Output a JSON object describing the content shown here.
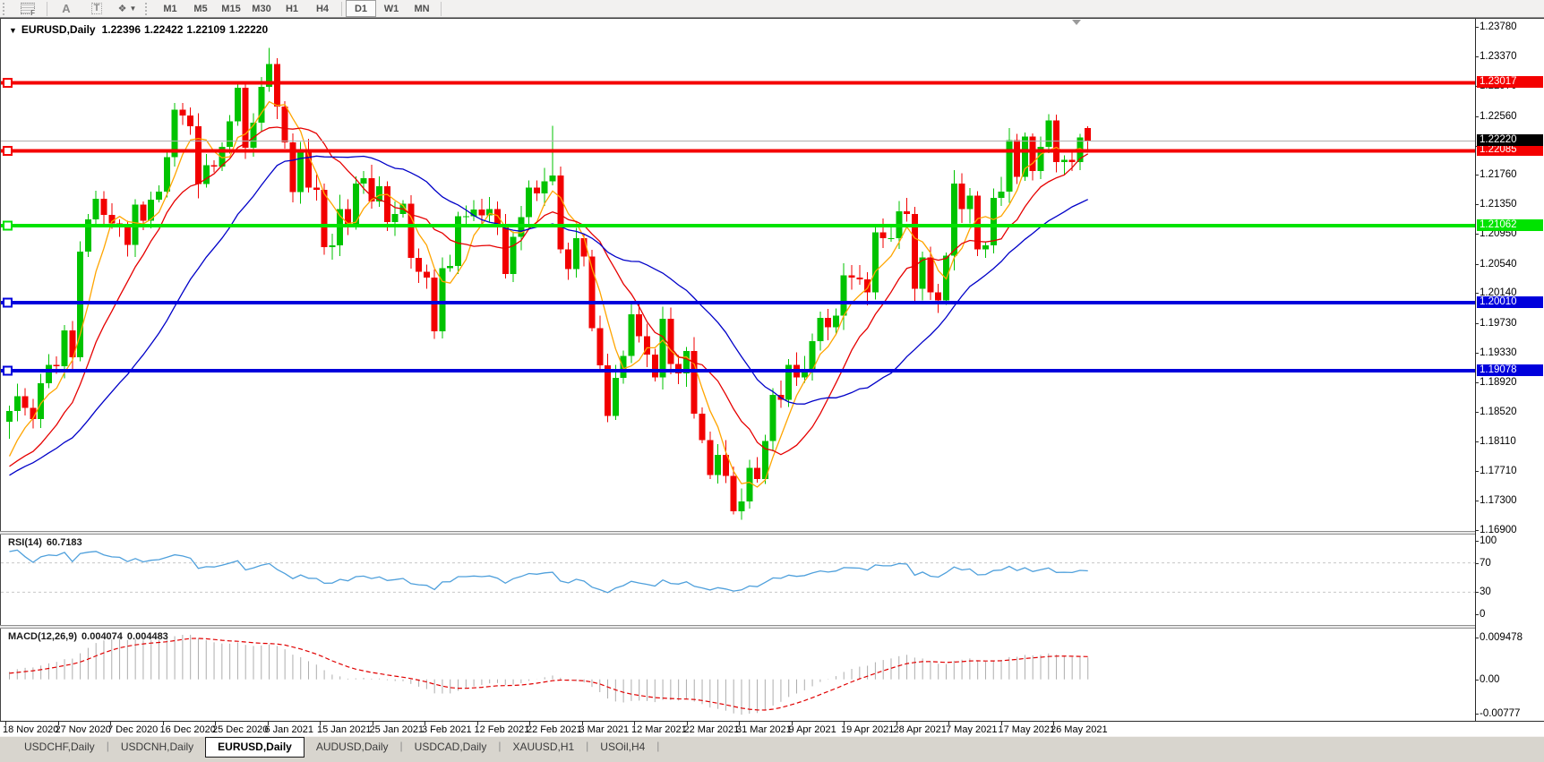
{
  "toolbar": {
    "tools": [
      {
        "name": "pattern-tool",
        "label": "F"
      },
      {
        "name": "text-label-tool",
        "label": "A"
      },
      {
        "name": "text-tool",
        "label": "T"
      },
      {
        "name": "shapes-tool",
        "label": "❖"
      }
    ],
    "timeframes": [
      "M1",
      "M5",
      "M15",
      "M30",
      "H1",
      "H4",
      "D1",
      "W1",
      "MN"
    ],
    "active_timeframe": "D1"
  },
  "chart_header": {
    "symbol_period": "EURUSD,Daily",
    "open": "1.22396",
    "high": "1.22422",
    "low": "1.22109",
    "close": "1.22220"
  },
  "price_axis": {
    "ticks": [
      "1.23780",
      "1.23370",
      "1.22970",
      "1.22560",
      "1.22150",
      "1.21760",
      "1.21350",
      "1.20950",
      "1.20540",
      "1.20140",
      "1.19730",
      "1.19330",
      "1.18920",
      "1.18520",
      "1.18110",
      "1.17710",
      "1.17300",
      "1.16900"
    ]
  },
  "hlines": [
    {
      "label": "1.23017",
      "value": 1.23017,
      "color": "#F40000"
    },
    {
      "label": "1.22085",
      "value": 1.22085,
      "color": "#F40000"
    },
    {
      "label": "1.21062",
      "value": 1.21062,
      "color": "#00E300"
    },
    {
      "label": "1.20010",
      "value": 1.2001,
      "color": "#0000DC"
    },
    {
      "label": "1.19078",
      "value": 1.19078,
      "color": "#0000DC"
    }
  ],
  "current_price": {
    "label": "1.22220",
    "value": 1.2222,
    "badge_bg": "#000000"
  },
  "rsi_panel": {
    "title": "RSI(14)",
    "value": "60.7183",
    "ticks": [
      "100",
      "70",
      "30",
      "0"
    ],
    "level_lines": [
      70,
      30
    ]
  },
  "macd_panel": {
    "title": "MACD(12,26,9)",
    "macd_value": "0.004074",
    "signal_value": "0.004483",
    "ticks": [
      {
        "label": "0.009478",
        "value": 0.009478
      },
      {
        "label": "0.00",
        "value": 0
      },
      {
        "label": "-0.00777",
        "value": -0.00777
      }
    ]
  },
  "time_axis": {
    "labels": [
      "18 Nov 2020",
      "27 Nov 2020",
      "7 Dec 2020",
      "16 Dec 2020",
      "25 Dec 2020",
      "6 Jan 2021",
      "15 Jan 2021",
      "25 Jan 2021",
      "3 Feb 2021",
      "12 Feb 2021",
      "22 Feb 2021",
      "3 Mar 2021",
      "12 Mar 2021",
      "22 Mar 2021",
      "31 Mar 2021",
      "9 Apr 2021",
      "19 Apr 2021",
      "28 Apr 2021",
      "7 May 2021",
      "17 May 2021",
      "26 May 2021"
    ]
  },
  "tabs": {
    "items": [
      "USDCHF,Daily",
      "USDCNH,Daily",
      "EURUSD,Daily",
      "AUDUSD,Daily",
      "USDCAD,Daily",
      "XAUUSD,H1",
      "USOil,H4"
    ],
    "active": "EURUSD,Daily"
  },
  "colors": {
    "candle_up": "#00C300",
    "candle_down": "#F20000",
    "ma_fast": "#FFA500",
    "ma_mid": "#E60000",
    "ma_slow": "#0000C8",
    "rsi_line": "#4FA0DC",
    "rsi_levels": "#C8C8C8",
    "macd_hist": "#ADADAD",
    "macd_signal": "#E00000",
    "current_price_line": "#B0B0B0"
  },
  "chart_data": {
    "type": "candlestick",
    "symbol": "EURUSD",
    "timeframe": "Daily",
    "title": "EURUSD,Daily  1.22396 1.22422 1.22109 1.22220",
    "visible_range": {
      "first_label": "18 Nov 2020",
      "last_label": "26 May 2021",
      "price_axis_max": 1.2378,
      "price_axis_min": 1.169
    },
    "first_open": 1.1838,
    "closes": [
      1.1853,
      1.1873,
      1.1857,
      1.1842,
      1.1891,
      1.1916,
      1.1914,
      1.1963,
      1.1926,
      1.2071,
      1.2115,
      1.2143,
      1.2121,
      1.2109,
      1.2106,
      1.208,
      1.2135,
      1.2113,
      1.2142,
      1.2153,
      1.22,
      1.2265,
      1.2257,
      1.2242,
      1.2163,
      1.2189,
      1.2187,
      1.2214,
      1.2249,
      1.2295,
      1.2213,
      1.2247,
      1.2296,
      1.2327,
      1.2269,
      1.222,
      1.2152,
      1.2207,
      1.2158,
      1.2155,
      1.2077,
      1.2079,
      1.2129,
      1.2105,
      1.2164,
      1.2171,
      1.2139,
      1.216,
      1.2111,
      1.2122,
      1.2136,
      1.2062,
      1.2043,
      1.2035,
      1.1962,
      1.2048,
      1.2051,
      1.2119,
      1.2119,
      1.2128,
      1.212,
      1.2129,
      1.2104,
      1.204,
      1.2091,
      1.2118,
      1.2158,
      1.215,
      1.2167,
      1.2175,
      1.2074,
      1.2047,
      1.2089,
      1.2064,
      1.1966,
      1.1915,
      1.1846,
      1.1898,
      1.1928,
      1.1985,
      1.1955,
      1.193,
      1.1899,
      1.1979,
      1.1917,
      1.1904,
      1.1935,
      1.1849,
      1.1813,
      1.1765,
      1.1793,
      1.1764,
      1.1716,
      1.1729,
      1.1775,
      1.176,
      1.1812,
      1.1875,
      1.1868,
      1.1916,
      1.1899,
      1.191,
      1.1948,
      1.198,
      1.1967,
      1.1983,
      1.2038,
      1.2035,
      1.2033,
      1.2015,
      1.2097,
      1.2089,
      1.2089,
      1.2126,
      1.2122,
      1.202,
      1.2063,
      1.2015,
      1.2004,
      1.2065,
      1.2164,
      1.2129,
      1.2147,
      1.2074,
      1.2079,
      1.2144,
      1.2153,
      1.2223,
      1.2173,
      1.2228,
      1.2181,
      1.2214,
      1.225,
      1.2193,
      1.2196,
      1.2193,
      1.2227,
      1.2222
    ],
    "wick_overrides": {
      "0": {
        "low": 1.1815
      },
      "33": {
        "high": 1.2349
      },
      "55": {
        "low": 1.1952
      },
      "69": {
        "high": 1.2243
      },
      "93": {
        "low": 1.1704
      }
    },
    "last_candle": {
      "open": 1.22396,
      "high": 1.22422,
      "low": 1.22109,
      "close": 1.2222
    },
    "hline_levels": [
      1.23017,
      1.22085,
      1.21062,
      1.2001,
      1.19078
    ],
    "indicators": {
      "moving_averages": [
        {
          "period": 5,
          "color": "#FFA500"
        },
        {
          "period": 12,
          "color": "#E60000"
        },
        {
          "period": 26,
          "color": "#0000C8"
        }
      ],
      "rsi": {
        "period": 14,
        "current": 60.7183
      },
      "macd": {
        "fast": 12,
        "slow": 26,
        "signal": 9,
        "macd_current": 0.004074,
        "signal_current": 0.004483
      }
    }
  }
}
